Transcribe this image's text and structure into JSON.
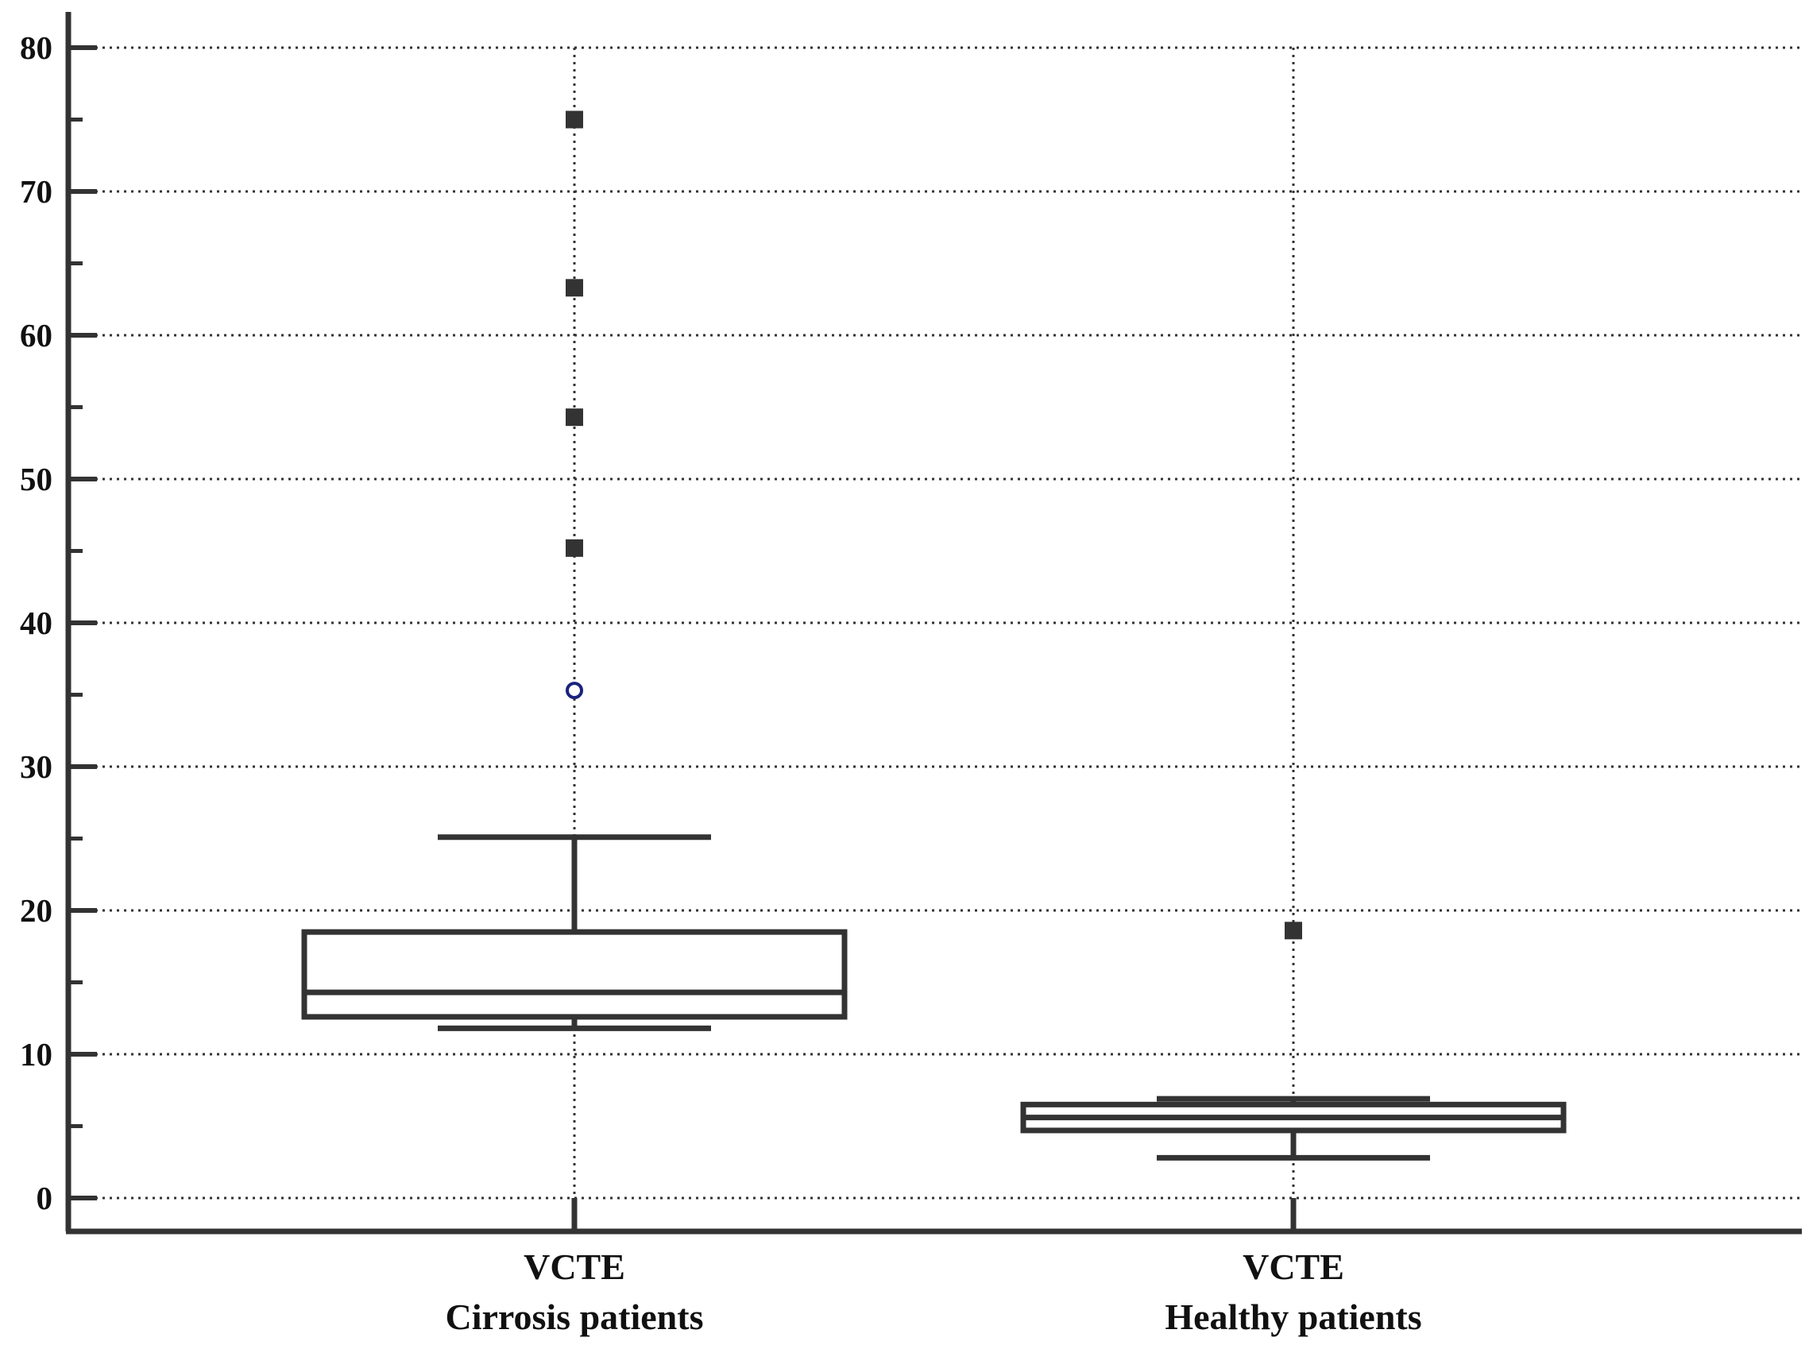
{
  "chart_data": {
    "type": "box",
    "title": "",
    "xlabel": "",
    "ylabel": "",
    "ylim": [
      -2.5,
      82
    ],
    "yticks": [
      0,
      10,
      20,
      30,
      40,
      50,
      60,
      70,
      80
    ],
    "ytick_labels": [
      "0",
      "10",
      "20",
      "30",
      "40",
      "50",
      "60",
      "70",
      "80"
    ],
    "minor_yticks": [
      5,
      15,
      25,
      35,
      45,
      55,
      65,
      75
    ],
    "grid": true,
    "categories": [
      {
        "line1": "VCTE",
        "line2": "Cirrosis patients"
      },
      {
        "line1": "VCTE",
        "line2": "Healthy patients"
      }
    ],
    "boxes": [
      {
        "whisker_low": 11.8,
        "q1": 12.6,
        "median": 14.3,
        "q3": 18.5,
        "whisker_high": 25.1,
        "outside_values": [
          35.3
        ],
        "far_out_values": [
          45.2,
          54.3,
          63.3,
          75.0
        ]
      },
      {
        "whisker_low": 2.8,
        "q1": 4.7,
        "median": 5.6,
        "q3": 6.5,
        "whisker_high": 6.9,
        "outside_values": [],
        "far_out_values": [
          18.6
        ]
      }
    ],
    "colors": {
      "axis": "#333333",
      "grid": "#333333",
      "box": "#333333",
      "far_out_marker": "#333333",
      "outside_marker": "#1a237e"
    }
  }
}
